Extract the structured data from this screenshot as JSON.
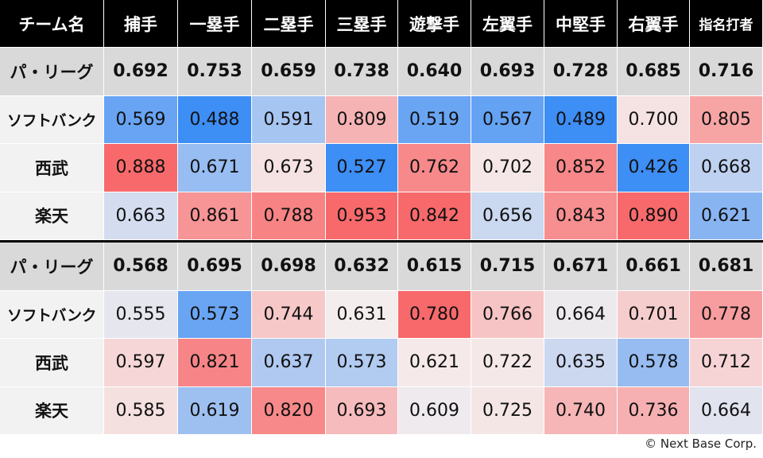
{
  "chart_data": {
    "type": "table",
    "columns": [
      "チーム名",
      "捕手",
      "一塁手",
      "二塁手",
      "三塁手",
      "遊撃手",
      "左翼手",
      "中堅手",
      "右翼手",
      "指名打者"
    ],
    "sections": [
      {
        "rows": [
          {
            "team": "パ・リーグ",
            "is_league": true,
            "values": [
              "0.692",
              "0.753",
              "0.659",
              "0.738",
              "0.640",
              "0.693",
              "0.728",
              "0.685",
              "0.716"
            ]
          },
          {
            "team": "ソフトバンク",
            "values": [
              "0.569",
              "0.488",
              "0.591",
              "0.809",
              "0.519",
              "0.567",
              "0.489",
              "0.700",
              "0.805"
            ]
          },
          {
            "team": "西武",
            "values": [
              "0.888",
              "0.671",
              "0.673",
              "0.527",
              "0.762",
              "0.702",
              "0.852",
              "0.426",
              "0.668"
            ]
          },
          {
            "team": "楽天",
            "values": [
              "0.663",
              "0.861",
              "0.788",
              "0.953",
              "0.842",
              "0.656",
              "0.843",
              "0.890",
              "0.621"
            ]
          }
        ]
      },
      {
        "rows": [
          {
            "team": "パ・リーグ",
            "is_league": true,
            "values": [
              "0.568",
              "0.695",
              "0.698",
              "0.632",
              "0.615",
              "0.715",
              "0.671",
              "0.661",
              "0.681"
            ]
          },
          {
            "team": "ソフトバンク",
            "values": [
              "0.555",
              "0.573",
              "0.744",
              "0.631",
              "0.780",
              "0.766",
              "0.664",
              "0.701",
              "0.778"
            ]
          },
          {
            "team": "西武",
            "values": [
              "0.597",
              "0.821",
              "0.637",
              "0.573",
              "0.621",
              "0.722",
              "0.635",
              "0.578",
              "0.712"
            ]
          },
          {
            "team": "楽天",
            "values": [
              "0.585",
              "0.619",
              "0.820",
              "0.693",
              "0.609",
              "0.725",
              "0.740",
              "0.736",
              "0.664"
            ]
          }
        ]
      }
    ],
    "colors": {
      "header_bg": "#000000",
      "header_text": "#ffffff",
      "league_row_bg": "#d9d9d9",
      "team_col_bg": "#f2f2f2",
      "high": "#f8696b",
      "neutral": "#f5eeee",
      "low": "#3d8ef5"
    }
  },
  "footer": {
    "copyright": "© Next Base Corp."
  }
}
